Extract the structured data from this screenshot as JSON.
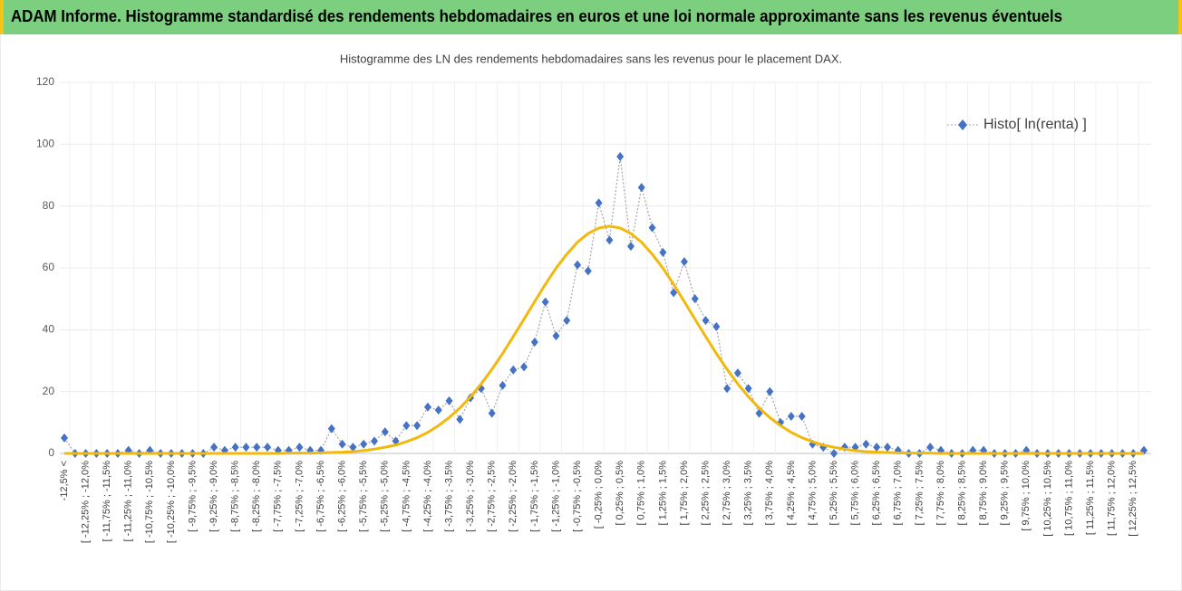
{
  "header": {
    "title": "ADAM Informe. Histogramme standardisé des rendements hebdomadaires en euros et une loi normale approximante sans les revenus éventuels"
  },
  "chart_data": {
    "type": "line",
    "title": "Histogramme des LN des rendements hebdomadaires sans les revenus pour le placement DAX.",
    "categories": [
      "-12,5% <",
      null,
      "[ -12,25% ; -12,0%",
      null,
      "[ -11,75% ; -11,5%",
      null,
      "[ -11,25% ; -11,0%",
      null,
      "[ -10,75% ; -10,5%",
      null,
      "[ -10,25% ; -10,0%",
      null,
      "[ -9,75% ; -9,5%",
      null,
      "[ -9,25% ; -9,0%",
      null,
      "[ -8,75% ; -8,5%",
      null,
      "[ -8,25% ; -8,0%",
      null,
      "[ -7,75% ; -7,5%",
      null,
      "[ -7,25% ; -7,0%",
      null,
      "[ -6,75% ; -6,5%",
      null,
      "[ -6,25% ; -6,0%",
      null,
      "[ -5,75% ; -5,5%",
      null,
      "[ -5,25% ; -5,0%",
      null,
      "[ -4,75% ; -4,5%",
      null,
      "[ -4,25% ; -4,0%",
      null,
      "[ -3,75% ; -3,5%",
      null,
      "[ -3,25% ; -3,0%",
      null,
      "[ -2,75% ; -2,5%",
      null,
      "[ -2,25% ; -2,0%",
      null,
      "[ -1,75% ; -1,5%",
      null,
      "[ -1,25% ; -1,0%",
      null,
      "[ -0,75% ; -0,5%",
      null,
      "[ -0,25% ; 0,0%",
      null,
      "[ 0,25% ; 0,5%",
      null,
      "[ 0,75% ; 1,0%",
      null,
      "[ 1,25% ; 1,5%",
      null,
      "[ 1,75% ; 2,0%",
      null,
      "[ 2,25% ; 2,5%",
      null,
      "[ 2,75% ; 3,0%",
      null,
      "[ 3,25% ; 3,5%",
      null,
      "[ 3,75% ; 4,0%",
      null,
      "[ 4,25% ; 4,5%",
      null,
      "[ 4,75% ; 5,0%",
      null,
      "[ 5,25% ; 5,5%",
      null,
      "[ 5,75% ; 6,0%",
      null,
      "[ 6,25% ; 6,5%",
      null,
      "[ 6,75% ; 7,0%",
      null,
      "[ 7,25% ; 7,5%",
      null,
      "[ 7,75% ; 8,0%",
      null,
      "[ 8,25% ; 8,5%",
      null,
      "[ 8,75% ; 9,0%",
      null,
      "[ 9,25% ; 9,5%",
      null,
      "[ 9,75% ; 10,0%",
      null,
      "[ 10,25% ; 10,5%",
      null,
      "[ 10,75% ; 11,0%",
      null,
      "[ 11,25% ; 11,5%",
      null,
      "[ 11,75% ; 12,0%",
      null,
      "[ 12,25% ; 12,5%",
      null
    ],
    "series": [
      {
        "name": "Histo[ ln(renta) ]",
        "color": "#4472c4",
        "values": [
          5,
          0,
          0,
          0,
          0,
          0,
          1,
          0,
          1,
          0,
          0,
          0,
          0,
          0,
          2,
          1,
          2,
          2,
          2,
          2,
          1,
          1,
          2,
          1,
          1,
          8,
          3,
          2,
          3,
          4,
          7,
          4,
          9,
          9,
          15,
          14,
          17,
          11,
          18,
          21,
          13,
          22,
          27,
          28,
          36,
          49,
          38,
          43,
          61,
          59,
          81,
          69,
          96,
          67,
          86,
          73,
          65,
          52,
          62,
          50,
          43,
          41,
          21,
          26,
          21,
          13,
          20,
          10,
          12,
          12,
          3,
          2,
          0,
          2,
          2,
          3,
          2,
          2,
          1,
          0,
          0,
          2,
          1,
          0,
          0,
          1,
          1,
          0,
          0,
          0,
          1,
          0,
          0,
          0,
          0,
          0,
          0,
          0,
          0,
          0,
          0,
          1
        ]
      },
      {
        "color": "#f2b90c",
        "values": [
          0,
          0,
          0,
          0,
          0,
          0,
          0,
          0,
          0,
          0,
          0,
          0,
          0,
          0,
          0,
          0,
          0,
          0,
          0,
          0,
          0,
          0.1,
          0.1,
          0.1,
          0.2,
          0.3,
          0.4,
          0.6,
          0.9,
          1.4,
          2.0,
          2.7,
          3.8,
          5.1,
          6.8,
          9.0,
          11.6,
          14.7,
          18.3,
          22.5,
          27.2,
          32.3,
          37.8,
          43.4,
          49.1,
          54.7,
          59.9,
          64.4,
          68.3,
          71.1,
          72.9,
          73.5,
          72.9,
          71.1,
          68.3,
          64.4,
          59.9,
          54.7,
          49.1,
          43.4,
          37.8,
          32.3,
          27.2,
          22.5,
          18.3,
          14.7,
          11.6,
          9.0,
          6.8,
          5.1,
          3.8,
          2.7,
          2.0,
          1.4,
          0.9,
          0.6,
          0.4,
          0.3,
          0.2,
          0.1,
          0.1,
          0.1,
          0,
          0,
          0,
          0,
          0,
          0,
          0,
          0,
          0,
          0,
          0,
          0,
          0,
          0,
          0,
          0,
          0,
          0,
          0,
          0
        ]
      }
    ],
    "ylim": [
      0,
      120
    ],
    "yticks": [
      0,
      20,
      40,
      60,
      80,
      100,
      120
    ],
    "grid": true,
    "legend": "upper right"
  }
}
